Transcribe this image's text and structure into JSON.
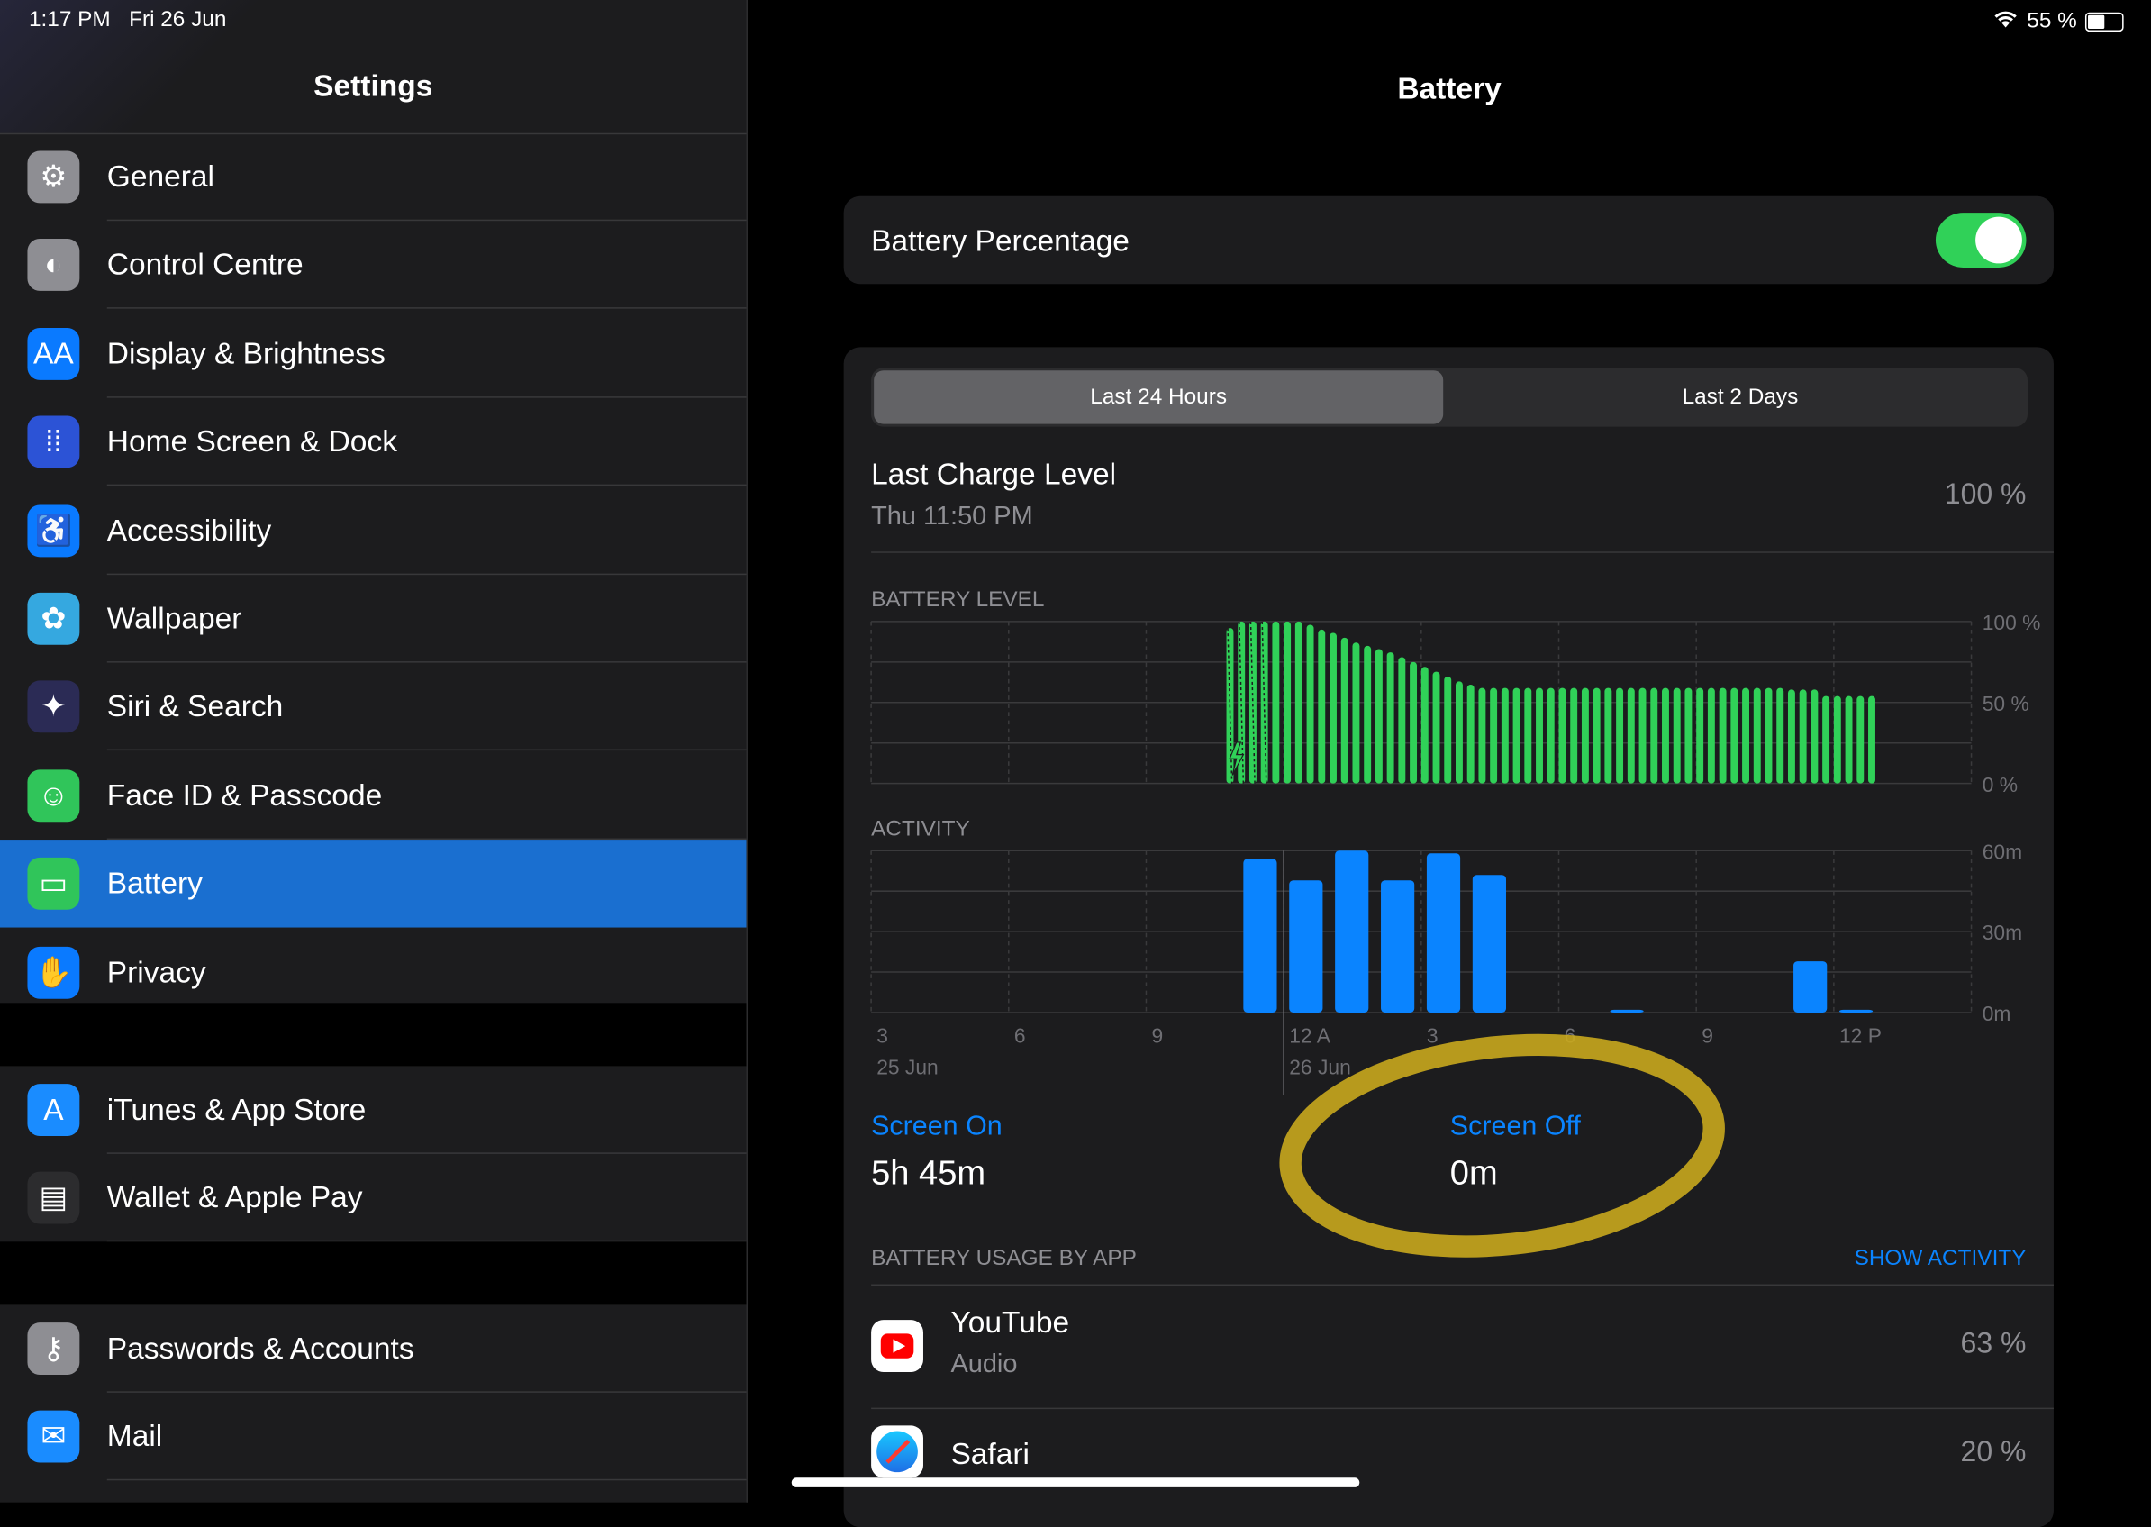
{
  "status_bar": {
    "time": "1:17 PM",
    "date": "Fri 26 Jun",
    "battery_text": "55 %",
    "battery_level": 0.55,
    "wifi_icon": "wifi-icon"
  },
  "sidebar": {
    "title": "Settings",
    "groups": [
      [
        {
          "label": "General",
          "icon": "gear-icon",
          "color": "#8e8e93",
          "glyph": "⚙"
        },
        {
          "label": "Control Centre",
          "icon": "toggles-icon",
          "color": "#8e8e93",
          "glyph": "◐"
        },
        {
          "label": "Display & Brightness",
          "icon": "text-size-icon",
          "color": "#0a7aff",
          "glyph": "AA"
        },
        {
          "label": "Home Screen & Dock",
          "icon": "app-grid-icon",
          "color": "#2c53d6",
          "glyph": "⁞⁞"
        },
        {
          "label": "Accessibility",
          "icon": "accessibility-icon",
          "color": "#0a7aff",
          "glyph": "♿"
        },
        {
          "label": "Wallpaper",
          "icon": "flower-icon",
          "color": "#35a8e0",
          "glyph": "✿"
        },
        {
          "label": "Siri & Search",
          "icon": "siri-icon",
          "color": "#2b2b55",
          "glyph": "✦"
        },
        {
          "label": "Face ID & Passcode",
          "icon": "face-id-icon",
          "color": "#30c55a",
          "glyph": "☺"
        },
        {
          "label": "Battery",
          "icon": "battery-icon",
          "color": "#30c55a",
          "glyph": "▭",
          "selected": true
        },
        {
          "label": "Privacy",
          "icon": "hand-icon",
          "color": "#0a7aff",
          "glyph": "✋"
        }
      ],
      [
        {
          "label": "iTunes & App Store",
          "icon": "app-store-icon",
          "color": "#1a8cff",
          "glyph": "A"
        },
        {
          "label": "Wallet & Apple Pay",
          "icon": "wallet-icon",
          "color": "#2c2c2e",
          "glyph": "▤"
        }
      ],
      [
        {
          "label": "Passwords & Accounts",
          "icon": "key-icon",
          "color": "#8e8e93",
          "glyph": "⚷"
        },
        {
          "label": "Mail",
          "icon": "mail-icon",
          "color": "#1a8cff",
          "glyph": "✉"
        }
      ]
    ]
  },
  "main": {
    "title": "Battery",
    "battery_percentage": {
      "label": "Battery Percentage",
      "on": true
    },
    "tabs": [
      {
        "label": "Last 24 Hours",
        "selected": true
      },
      {
        "label": "Last 2 Days",
        "selected": false
      }
    ],
    "last_charge": {
      "label": "Last Charge Level",
      "time": "Thu 11:50 PM",
      "value": "100 %"
    },
    "screen_on": {
      "label": "Screen On",
      "value": "5h 45m"
    },
    "screen_off": {
      "label": "Screen Off",
      "value": "0m"
    },
    "usage_header": "BATTERY USAGE BY APP",
    "show_activity": "SHOW ACTIVITY",
    "apps": [
      {
        "name": "YouTube",
        "detail": "Audio",
        "percent": "63 %",
        "icon": "youtube-icon"
      },
      {
        "name": "Safari",
        "detail": "",
        "percent": "20 %",
        "icon": "safari-icon"
      }
    ],
    "annotation_color": "#d4b21f"
  },
  "chart_data": [
    {
      "type": "bar",
      "title": "BATTERY LEVEL",
      "color": "#30d158",
      "x_ticks": [
        "3",
        "6",
        "9",
        "12 A",
        "3",
        "6",
        "9",
        "12 P"
      ],
      "date_labels": [
        "25 Jun",
        "26 Jun"
      ],
      "y_ticks": [
        "100 %",
        "50 %",
        "0 %"
      ],
      "ylim": [
        0,
        100
      ],
      "x_start": "25 Jun 10:45 PM",
      "interval_minutes": 15,
      "charging_bars": 4,
      "values": [
        96,
        100,
        100,
        100,
        100,
        100,
        100,
        98,
        95,
        93,
        90,
        87,
        85,
        83,
        81,
        78,
        75,
        72,
        69,
        66,
        63,
        61,
        59,
        59,
        59,
        59,
        59,
        59,
        59,
        59,
        59,
        59,
        59,
        59,
        59,
        59,
        59,
        59,
        59,
        59,
        59,
        59,
        59,
        59,
        59,
        59,
        59,
        59,
        59,
        58,
        58,
        58,
        54,
        54,
        54,
        54,
        54
      ],
      "grid": true
    },
    {
      "type": "bar",
      "title": "ACTIVITY",
      "color": "#0a84ff",
      "x_ticks": [
        "3",
        "6",
        "9",
        "12 A",
        "3",
        "6",
        "9",
        "12 P"
      ],
      "date_labels": [
        "25 Jun",
        "26 Jun"
      ],
      "y_ticks": [
        "60m",
        "30m",
        "0m"
      ],
      "ylim": [
        0,
        60
      ],
      "categories": [
        "11 PM",
        "12 AM",
        "1 AM",
        "2 AM",
        "3 AM",
        "4 AM",
        "7 AM",
        "11 AM",
        "12 PM"
      ],
      "values": [
        57,
        49,
        60,
        49,
        59,
        51,
        1,
        19,
        1
      ],
      "grid": true
    }
  ]
}
